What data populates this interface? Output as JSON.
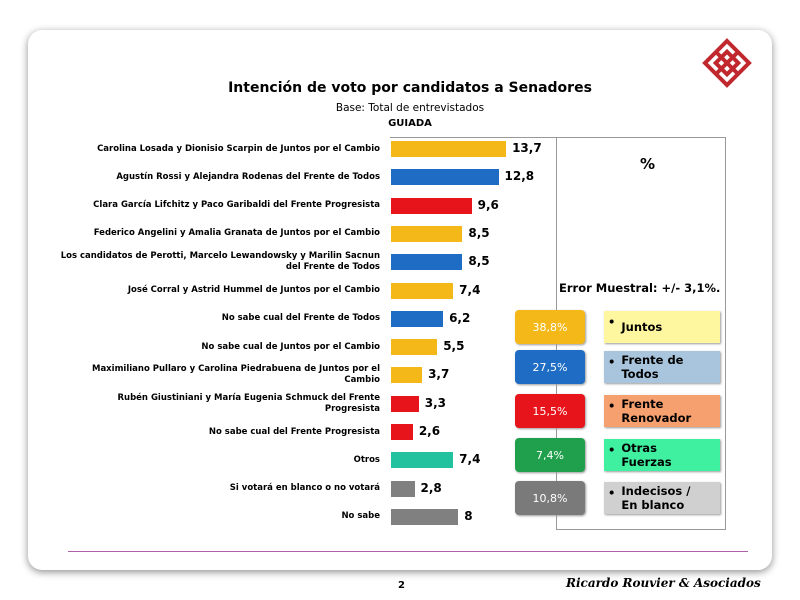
{
  "chart_data": {
    "type": "bar",
    "orientation": "horizontal",
    "title": "Intención de voto por candidatos a Senadores",
    "subtitle": "Base: Total de entrevistados",
    "subtitle2": "GUIADA",
    "categories": [
      "Carolina Losada y Dionisio Scarpin de Juntos por el Cambio",
      "Agustín Rossi y Alejandra Rodenas del Frente de Todos",
      "Clara García Lifchitz y Paco Garibaldi del Frente Progresista",
      "Federico Angelini y Amalia Granata de Juntos por el Cambio",
      "Los candidatos de Perotti, Marcelo Lewandowsky y Marilin Sacnun del Frente de Todos",
      "José Corral y Astrid Hummel de Juntos por el Cambio",
      "No sabe cual del Frente de Todos",
      "No sabe cual de Juntos por el Cambio",
      "Maximiliano Pullaro y Carolina Piedrabuena de Juntos por el Cambio",
      "Rubén Giustiniani y María Eugenia Schmuck del Frente Progresista",
      "No sabe cual del Frente Progresista",
      "Otros",
      "Si votará en blanco o no votará",
      "No sabe"
    ],
    "values": [
      13.7,
      12.8,
      9.6,
      8.5,
      8.5,
      7.4,
      6.2,
      5.5,
      3.7,
      3.3,
      2.6,
      7.4,
      2.8,
      8
    ],
    "value_labels": [
      "13,7",
      "12,8",
      "9,6",
      "8,5",
      "8,5",
      "7,4",
      "6,2",
      "5,5",
      "3,7",
      "3,3",
      "2,6",
      "7,4",
      "2,8",
      "8"
    ],
    "colors": [
      "#f5b819",
      "#1f6cc4",
      "#e8141c",
      "#f5b819",
      "#1f6cc4",
      "#f5b819",
      "#1f6cc4",
      "#f5b819",
      "#f5b819",
      "#e8141c",
      "#e8141c",
      "#22c29e",
      "#808080",
      "#808080"
    ]
  },
  "summary": {
    "unit": "%",
    "error_note": "Error Muestral: +/- 3,1%.",
    "groups": [
      {
        "label": "Juntos",
        "value": 38.8,
        "value_label": "38,8%",
        "color": "#f5b819",
        "label_color": "#fff7a0"
      },
      {
        "label": "Frente de Todos",
        "value": 27.5,
        "value_label": "27,5%",
        "color": "#1f6cc4",
        "label_color": "#a9c5dd"
      },
      {
        "label": "Frente Renovador",
        "value": 15.5,
        "value_label": "15,5%",
        "color": "#e8141c",
        "label_color": "#f6a070"
      },
      {
        "label": "Otras Fuerzas",
        "value": 7.4,
        "value_label": "7,4%",
        "color": "#20a04c",
        "label_color": "#3ff0a0"
      },
      {
        "label": "Indecisos / En blanco",
        "value": 10.8,
        "value_label": "10,8%",
        "color": "#7a7a7a",
        "label_color": "#d0d0d0"
      }
    ]
  },
  "footer": {
    "page": "2",
    "brand": "Ricardo Rouvier & Asociados"
  }
}
